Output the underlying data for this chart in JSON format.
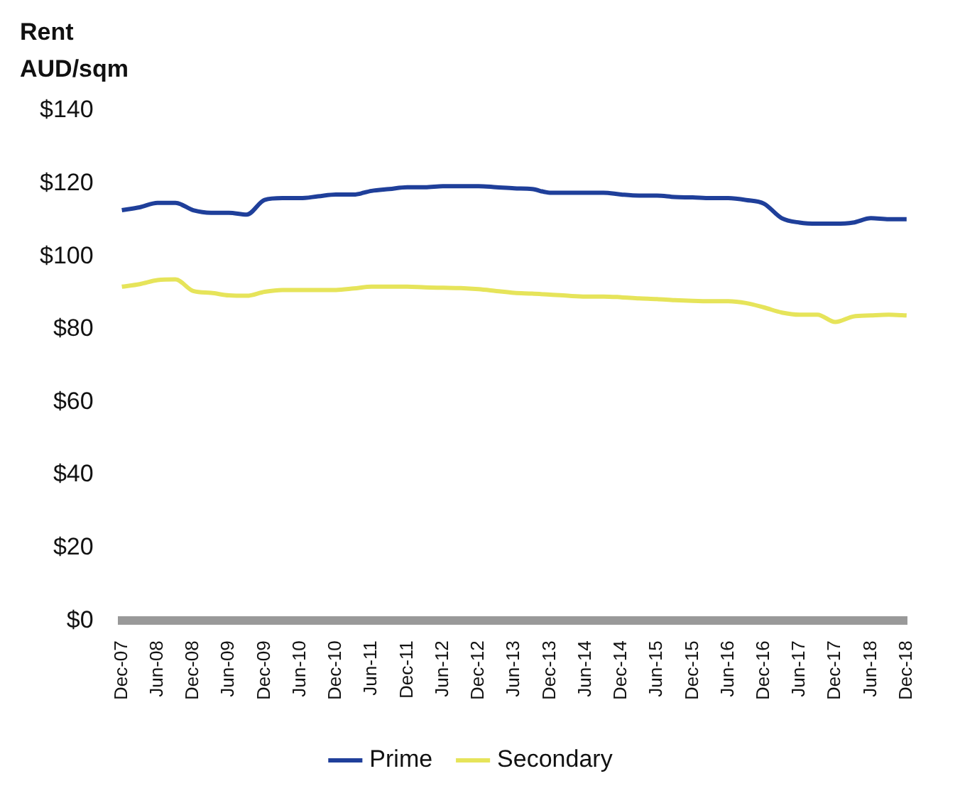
{
  "chart_data": {
    "type": "line",
    "ylabel": "Rent AUD/sqm",
    "categories": [
      "Dec-07",
      null,
      "Jun-08",
      null,
      "Dec-08",
      null,
      "Jun-09",
      null,
      "Dec-09",
      null,
      "Jun-10",
      null,
      "Dec-10",
      null,
      "Jun-11",
      null,
      "Dec-11",
      null,
      "Jun-12",
      null,
      "Dec-12",
      null,
      "Jun-13",
      null,
      "Dec-13",
      null,
      "Jun-14",
      null,
      "Dec-14",
      null,
      "Jun-15",
      null,
      "Dec-15",
      null,
      "Jun-16",
      null,
      "Dec-16",
      null,
      "Jun-17",
      null,
      "Dec-17",
      null,
      "Jun-18",
      null,
      "Dec-18"
    ],
    "series": [
      {
        "name": "Prime",
        "color": "#1f3f9a",
        "values": [
          112.7,
          113.5,
          114.7,
          114.7,
          112.7,
          112,
          112,
          111.5,
          115.5,
          116,
          116,
          116.5,
          117,
          117,
          118,
          118.5,
          119,
          119,
          119.3,
          119.3,
          119.3,
          119,
          118.7,
          118.5,
          117.5,
          117.5,
          117.5,
          117.5,
          117,
          116.7,
          116.7,
          116.3,
          116.2,
          116,
          116,
          115.5,
          114.5,
          110.5,
          109.3,
          109,
          109,
          109.3,
          110.5,
          110.2,
          110.2
        ]
      },
      {
        "name": "Secondary",
        "color": "#e6e45a",
        "values": [
          91.7,
          92.4,
          93.5,
          93.7,
          90.5,
          90,
          89.3,
          89.2,
          90.3,
          90.8,
          90.8,
          90.8,
          90.8,
          91.2,
          91.7,
          91.7,
          91.7,
          91.5,
          91.4,
          91.3,
          91,
          90.5,
          90,
          89.8,
          89.5,
          89.2,
          89,
          89,
          88.8,
          88.5,
          88.3,
          88,
          87.8,
          87.7,
          87.7,
          87.2,
          86,
          84.6,
          84,
          84,
          82,
          83.5,
          83.8,
          84,
          83.8
        ]
      }
    ],
    "ylim": [
      0,
      140
    ],
    "yticks": [
      {
        "value": 0,
        "label": "$0"
      },
      {
        "value": 20,
        "label": "$20"
      },
      {
        "value": 40,
        "label": "$40"
      },
      {
        "value": 60,
        "label": "$60"
      },
      {
        "value": 80,
        "label": "$80"
      },
      {
        "value": 100,
        "label": "$100"
      },
      {
        "value": 120,
        "label": "$120"
      },
      {
        "value": 140,
        "label": "$140"
      }
    ],
    "grid": false,
    "legend": "bottom",
    "marker": "none",
    "line_style": "solid"
  }
}
